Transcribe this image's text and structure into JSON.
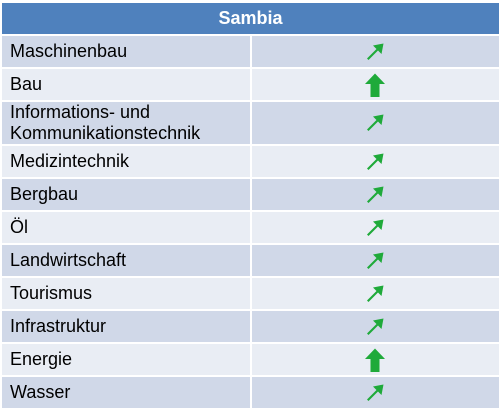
{
  "table": {
    "title": "Sambia",
    "colors": {
      "header": "#4f81bd",
      "row_odd": "#d0d8e8",
      "row_even": "#e9edf4",
      "arrow": "#1faa3a"
    },
    "rows": [
      {
        "label": "Maschinenbau",
        "trend_icon": "arrow-up-right-icon"
      },
      {
        "label": "Bau",
        "trend_icon": "arrow-up-icon"
      },
      {
        "label": "Informations- und Kommunikationstechnik",
        "trend_icon": "arrow-up-right-icon"
      },
      {
        "label": "Medizintechnik",
        "trend_icon": "arrow-up-right-icon"
      },
      {
        "label": "Bergbau",
        "trend_icon": "arrow-up-right-icon"
      },
      {
        "label": "Öl",
        "trend_icon": "arrow-up-right-icon"
      },
      {
        "label": "Landwirtschaft",
        "trend_icon": "arrow-up-right-icon"
      },
      {
        "label": "Tourismus",
        "trend_icon": "arrow-up-right-icon"
      },
      {
        "label": "Infrastruktur",
        "trend_icon": "arrow-up-right-icon"
      },
      {
        "label": "Energie",
        "trend_icon": "arrow-up-icon"
      },
      {
        "label": "Wasser",
        "trend_icon": "arrow-up-right-icon"
      }
    ]
  }
}
